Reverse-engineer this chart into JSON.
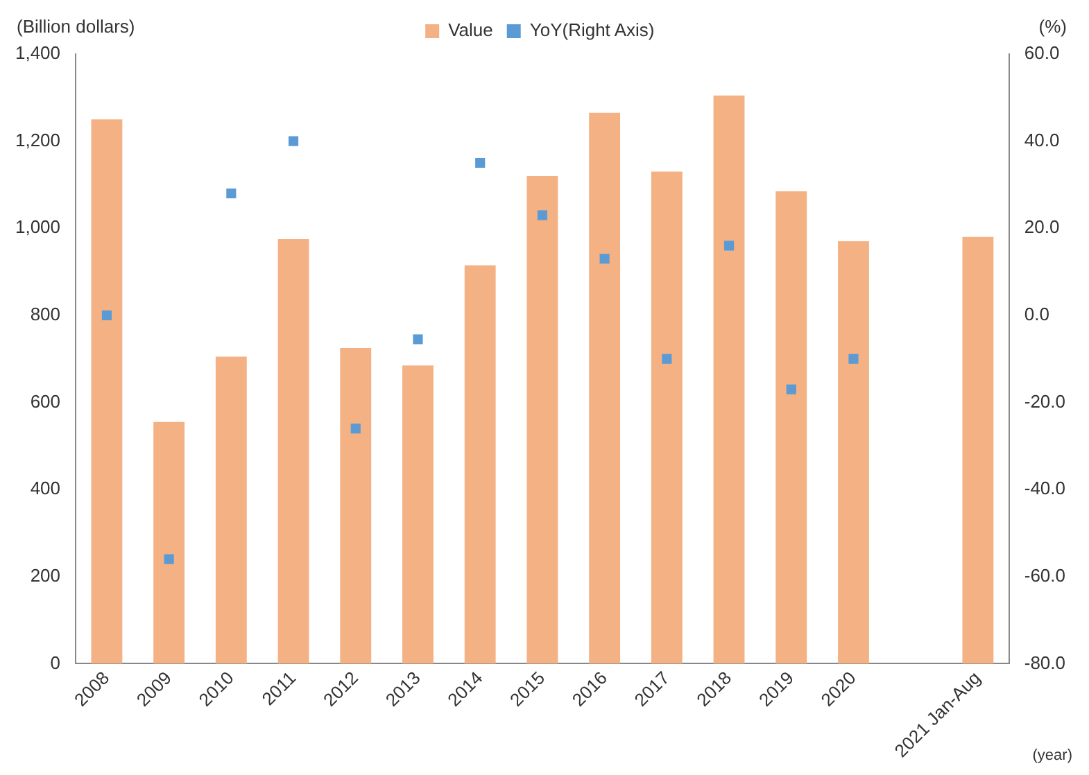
{
  "chart_data": {
    "type": "bar",
    "xlabel": "(year)",
    "ylabel": "(Billion dollars)",
    "y2label": "(%)",
    "categories": [
      "2008",
      "2009",
      "2010",
      "2011",
      "2012",
      "2013",
      "2014",
      "2015",
      "2016",
      "2017",
      "2018",
      "2019",
      "2020",
      null,
      "2021 Jan-Aug"
    ],
    "series": [
      {
        "name": "Value",
        "color": "#f4b183",
        "values": [
          1250,
          555,
          705,
          975,
          725,
          685,
          915,
          1120,
          1265,
          1130,
          1305,
          1085,
          970,
          null,
          980
        ]
      },
      {
        "name": "YoY(Right Axis)",
        "type": "scatter",
        "axis": "y2",
        "color": "#5b9bd5",
        "values": [
          0,
          -56,
          28,
          40,
          -26,
          -5.5,
          35,
          23,
          13,
          -10,
          16,
          -17,
          -10,
          null,
          null
        ]
      }
    ],
    "ylim": [
      0,
      1400
    ],
    "yticks": [
      {
        "value": 0,
        "label": "0"
      },
      {
        "value": 200,
        "label": "200"
      },
      {
        "value": 400,
        "label": "400"
      },
      {
        "value": 600,
        "label": "600"
      },
      {
        "value": 800,
        "label": "800"
      },
      {
        "value": 1000,
        "label": "1,000"
      },
      {
        "value": 1200,
        "label": "1,200"
      },
      {
        "value": 1400,
        "label": "1,400"
      }
    ],
    "y2lim": [
      -80,
      60
    ],
    "y2ticks": [
      {
        "value": -80,
        "label": "-80.0"
      },
      {
        "value": -60,
        "label": "-60.0"
      },
      {
        "value": -40,
        "label": "-40.0"
      },
      {
        "value": -20,
        "label": "-20.0"
      },
      {
        "value": 0,
        "label": "0.0"
      },
      {
        "value": 20,
        "label": "20.0"
      },
      {
        "value": 40,
        "label": "40.0"
      },
      {
        "value": 60,
        "label": "60.0"
      }
    ],
    "legend": "top",
    "grid": false,
    "marker": "square"
  }
}
